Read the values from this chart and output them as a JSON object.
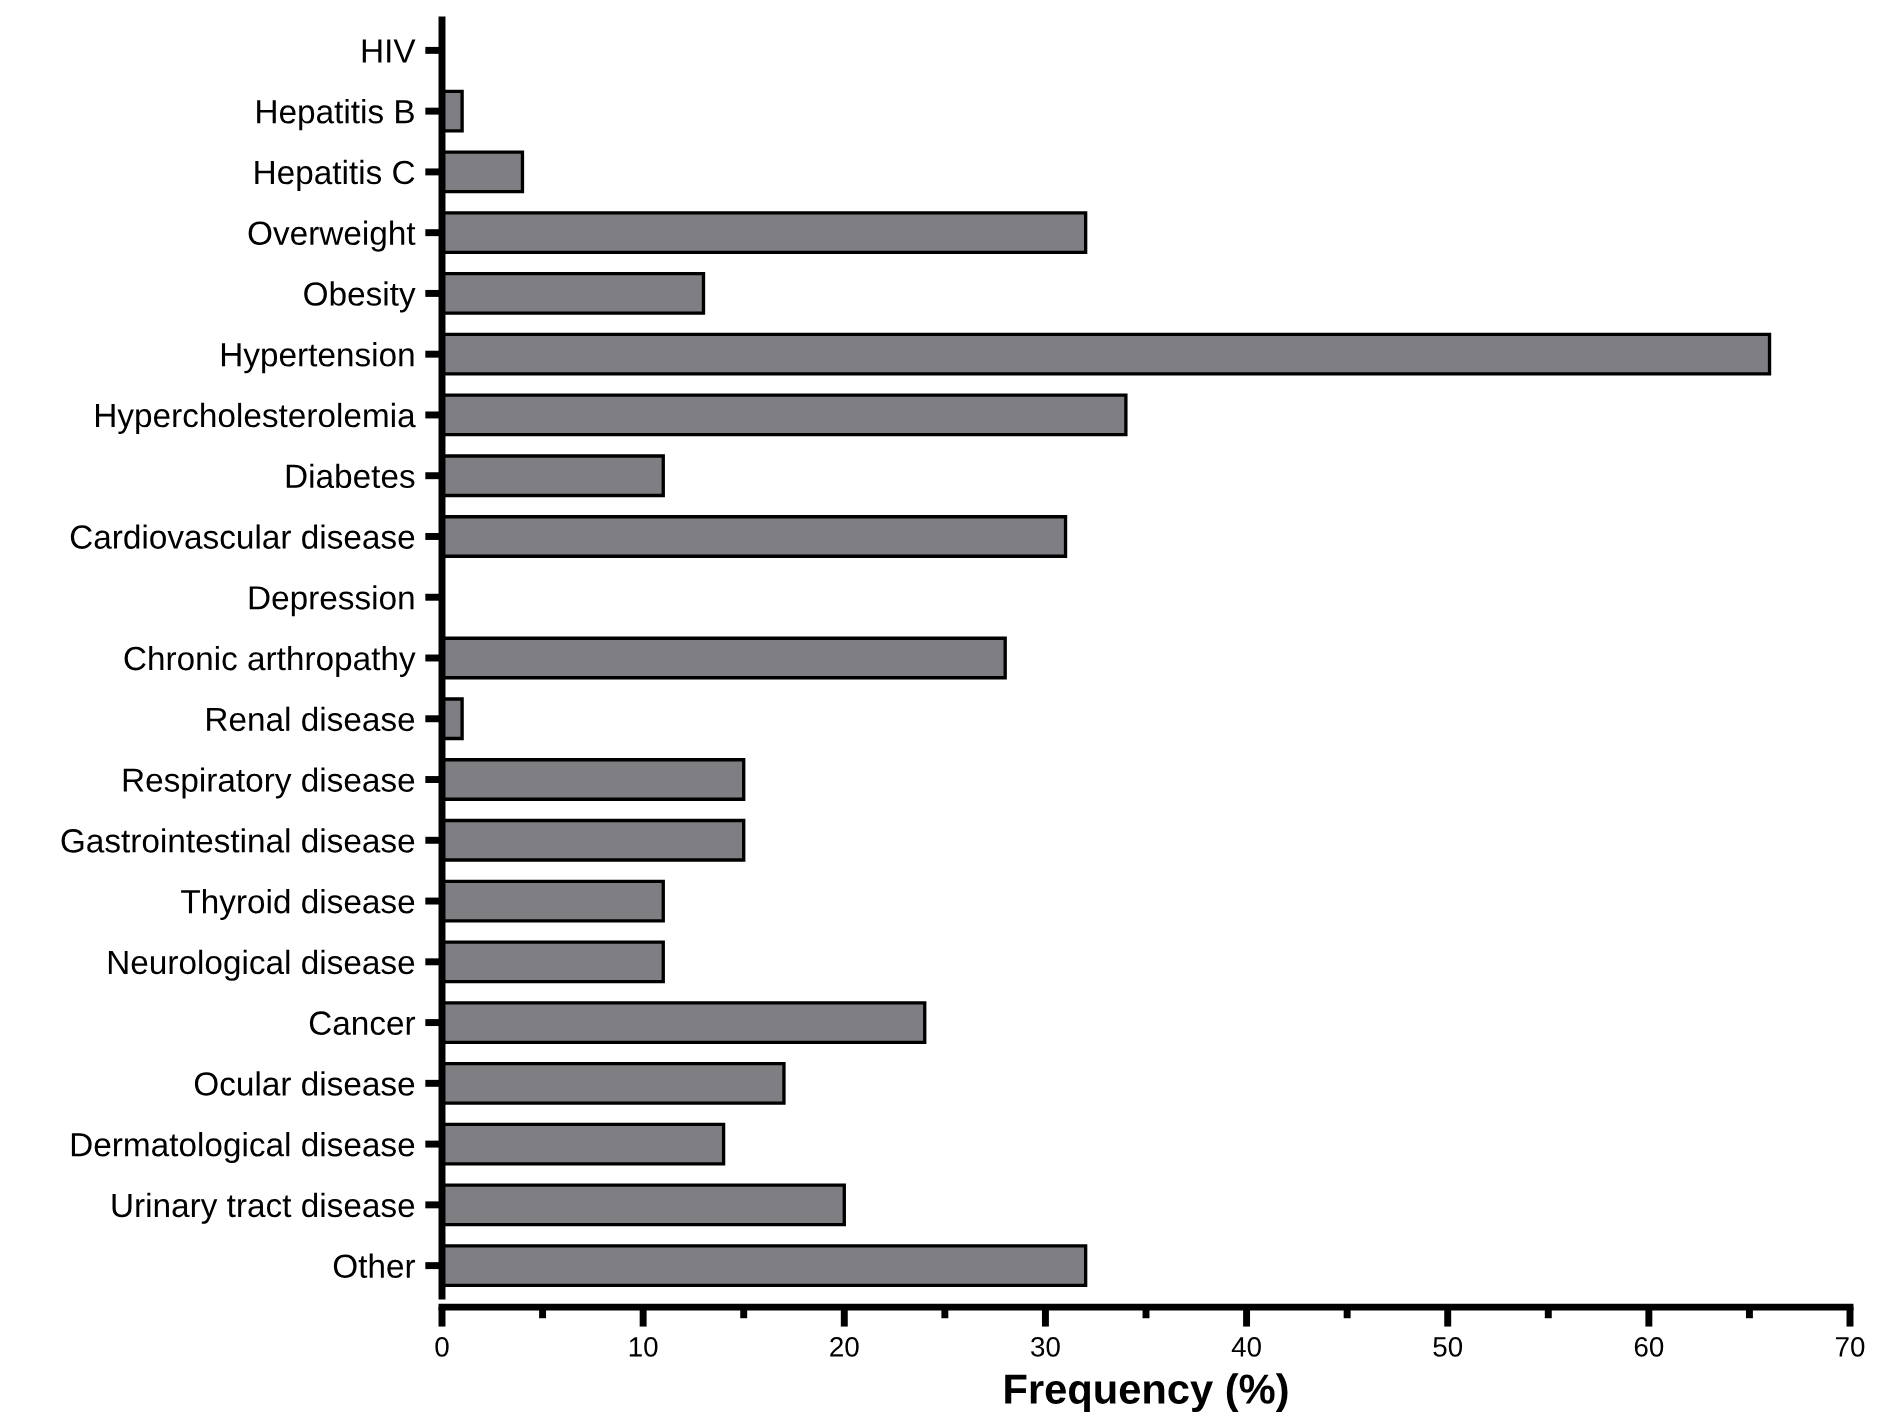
{
  "chart_data": {
    "type": "bar",
    "orientation": "horizontal",
    "xlabel": "Frequency (%)",
    "categories": [
      "HIV",
      "Hepatitis B",
      "Hepatitis C",
      "Overweight",
      "Obesity",
      "Hypertension",
      "Hypercholesterolemia",
      "Diabetes",
      "Cardiovascular disease",
      "Depression",
      "Chronic arthropathy",
      "Renal disease",
      "Respiratory disease",
      "Gastrointestinal disease",
      "Thyroid disease",
      "Neurological disease",
      "Cancer",
      "Ocular disease",
      "Dermatological disease",
      "Urinary tract disease",
      "Other"
    ],
    "values": [
      0,
      1,
      4,
      32,
      13,
      66,
      34,
      11,
      31,
      0,
      28,
      1,
      15,
      15,
      11,
      11,
      24,
      17,
      14,
      20,
      32
    ],
    "color": "#7f7f83",
    "xlim": [
      0,
      70
    ],
    "xticks": [
      0,
      {
        "value": 5,
        "label": null
      },
      10,
      {
        "value": 15,
        "label": null
      },
      20,
      {
        "value": 25,
        "label": null
      },
      30,
      {
        "value": 35,
        "label": null
      },
      40,
      {
        "value": 45,
        "label": null
      },
      50,
      {
        "value": 55,
        "label": null
      },
      60,
      {
        "value": 65,
        "label": null
      },
      70
    ],
    "grid": false,
    "legend": false
  }
}
